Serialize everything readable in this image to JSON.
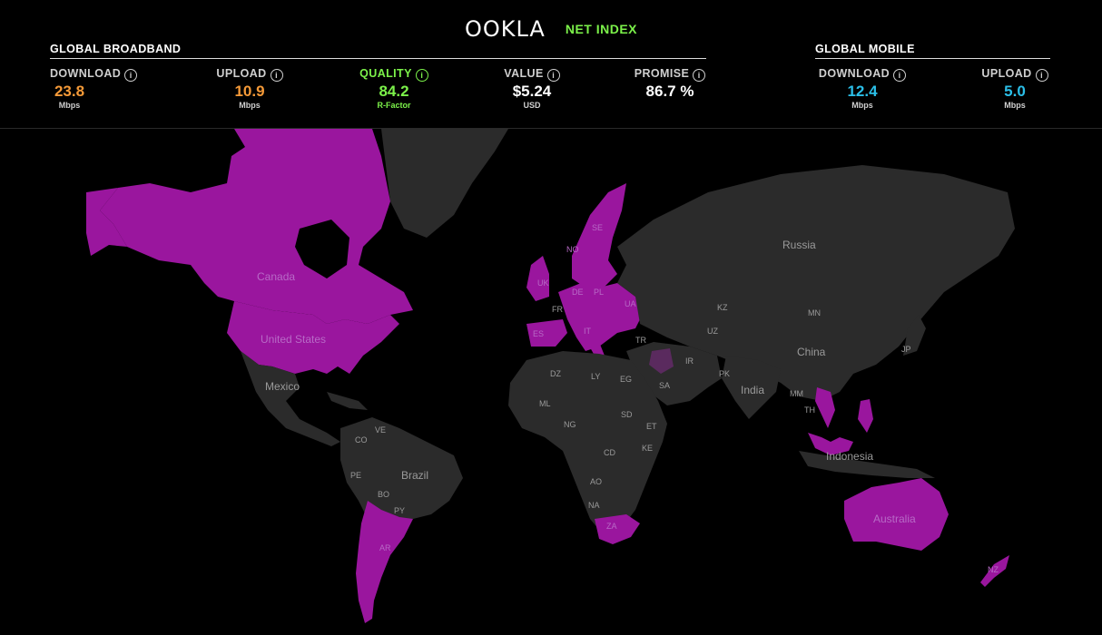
{
  "brand": {
    "logo": "OOKLA",
    "product": "NET INDEX"
  },
  "broadband": {
    "title": "GLOBAL BROADBAND",
    "metrics": [
      {
        "label": "DOWNLOAD",
        "value": "23.8",
        "unit": "Mbps",
        "color": "#f59a38"
      },
      {
        "label": "UPLOAD",
        "value": "10.9",
        "unit": "Mbps",
        "color": "#f59a38"
      },
      {
        "label": "QUALITY",
        "value": "84.2",
        "unit": "R-Factor",
        "color": "#7cf24a"
      },
      {
        "label": "VALUE",
        "value": "$5.24",
        "unit": "USD",
        "color": "#ffffff"
      },
      {
        "label": "PROMISE",
        "value": "86.7 %",
        "unit": "",
        "color": "#ffffff"
      }
    ]
  },
  "mobile": {
    "title": "GLOBAL MOBILE",
    "metrics": [
      {
        "label": "DOWNLOAD",
        "value": "12.4",
        "unit": "Mbps",
        "color": "#2bbfe8"
      },
      {
        "label": "UPLOAD",
        "value": "5.0",
        "unit": "Mbps",
        "color": "#2bbfe8"
      }
    ]
  },
  "info_icon": "info-circle-icon",
  "colors": {
    "highlight": "#9a169e",
    "land": "#2b2b2b",
    "ocean": "#000000",
    "accent_green": "#7cf24a"
  },
  "map": {
    "labels": {
      "russia": "Russia",
      "canada": "Canada",
      "united_states": "United States",
      "mexico": "Mexico",
      "brazil": "Brazil",
      "china": "China",
      "india": "India",
      "australia": "Australia",
      "indonesia": "Indonesia",
      "se": "SE",
      "no": "NO",
      "uk": "UK",
      "de": "DE",
      "pl": "PL",
      "ua": "UA",
      "fr": "FR",
      "es": "ES",
      "it": "IT",
      "tr": "TR",
      "ir": "IR",
      "kz": "KZ",
      "mn": "MN",
      "uz": "UZ",
      "pk": "PK",
      "jp": "JP",
      "mm": "MM",
      "th": "TH",
      "dz": "DZ",
      "ly": "LY",
      "eg": "EG",
      "sa": "SA",
      "ml": "ML",
      "ng": "NG",
      "sd": "SD",
      "et": "ET",
      "ke": "KE",
      "cd": "CD",
      "ao": "AO",
      "na": "NA",
      "za": "ZA",
      "ve": "VE",
      "co": "CO",
      "pe": "PE",
      "bo": "BO",
      "py": "PY",
      "ar": "AR",
      "nz": "NZ"
    }
  }
}
